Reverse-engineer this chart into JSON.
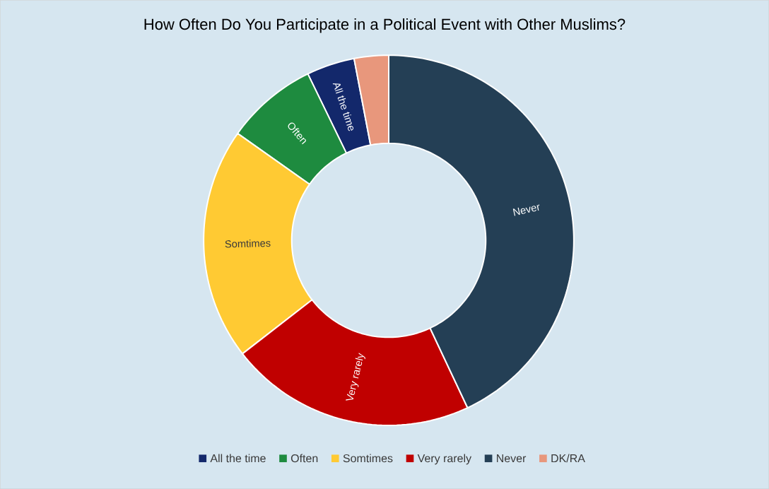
{
  "chart_data": {
    "type": "donut",
    "title": "How Often Do You Participate in a Political Event with Other Muslims?",
    "categories": [
      "All the time",
      "Often",
      "Somtimes",
      "Very rarely",
      "Never",
      "DK/RA"
    ],
    "values": [
      4.2,
      8,
      20.3,
      21.5,
      43,
      3
    ],
    "colors": [
      "#13286b",
      "#1e8b3f",
      "#ffca33",
      "#c00000",
      "#243f55",
      "#e8977c"
    ],
    "legend": "bottom"
  }
}
